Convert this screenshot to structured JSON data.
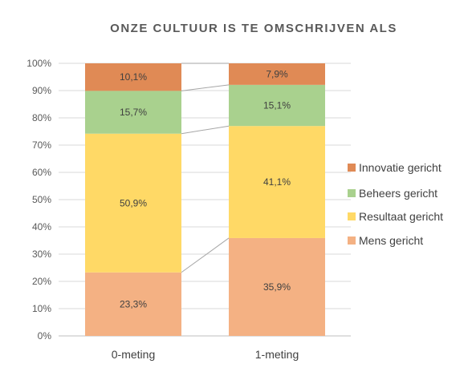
{
  "chart_data": {
    "type": "bar",
    "stacked": true,
    "percent_stacked": true,
    "title": "ONZE CULTUUR IS TE OMSCHRIJVEN ALS",
    "categories": [
      "0-meting",
      "1-meting"
    ],
    "y_ticks": [
      "0%",
      "10%",
      "20%",
      "30%",
      "40%",
      "50%",
      "60%",
      "70%",
      "80%",
      "90%",
      "100%"
    ],
    "ylim": [
      0,
      100
    ],
    "grid": true,
    "legend_position": "right",
    "series_connector_lines": true,
    "series": [
      {
        "name": "Mens gericht",
        "values": [
          23.3,
          35.9
        ],
        "labels": [
          "23,3%",
          "35,9%"
        ],
        "color": "#F4B183"
      },
      {
        "name": "Resultaat gericht",
        "values": [
          50.9,
          41.1
        ],
        "labels": [
          "50,9%",
          "41,1%"
        ],
        "color": "#FFD966"
      },
      {
        "name": "Beheers gericht",
        "values": [
          15.7,
          15.1
        ],
        "labels": [
          "15,7%",
          "15,1%"
        ],
        "color": "#A9D18E"
      },
      {
        "name": "Innovatie gericht",
        "values": [
          10.1,
          7.9
        ],
        "labels": [
          "10,1%",
          "7,9%"
        ],
        "color": "#E08A55"
      }
    ]
  }
}
